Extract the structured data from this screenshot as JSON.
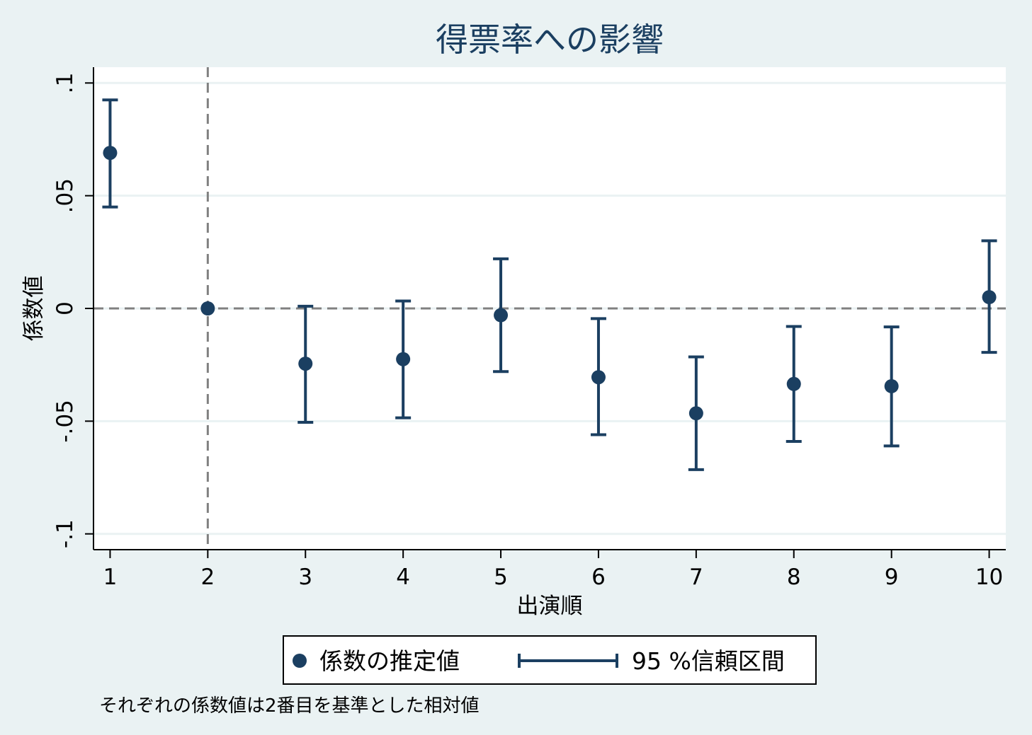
{
  "chart_data": {
    "type": "scatter",
    "title": "得票率への影響",
    "xlabel": "出演順",
    "ylabel": "係数値",
    "x": [
      1,
      2,
      3,
      4,
      5,
      6,
      7,
      8,
      9,
      10
    ],
    "series": [
      {
        "name": "係数の推定値",
        "values": [
          0.069,
          0.0,
          -0.0245,
          -0.0225,
          -0.003,
          -0.0305,
          -0.0465,
          -0.0335,
          -0.0345,
          0.005
        ]
      },
      {
        "name": "95 %信頼区間",
        "lower": [
          0.045,
          0.0,
          -0.0505,
          -0.0485,
          -0.028,
          -0.056,
          -0.0715,
          -0.059,
          -0.061,
          -0.0195
        ],
        "upper": [
          0.0925,
          0.0,
          0.001,
          0.0033,
          0.022,
          -0.0045,
          -0.0215,
          -0.008,
          -0.0082,
          0.03
        ]
      }
    ],
    "xlim": [
      0.83,
      10.17
    ],
    "ylim": [
      -0.107,
      0.107
    ],
    "yticks": [
      ".1",
      ".05",
      "0",
      "-.05",
      "-.1"
    ],
    "ytick_values": [
      0.1,
      0.05,
      0,
      -0.05,
      -0.1
    ],
    "xticks": [
      "1",
      "2",
      "3",
      "4",
      "5",
      "6",
      "7",
      "8",
      "9",
      "10"
    ],
    "xtick_values": [
      1,
      2,
      3,
      4,
      5,
      6,
      7,
      8,
      9,
      10
    ],
    "reference_lines": {
      "x": 2,
      "y": 0
    },
    "grid": true,
    "legend": "bottom",
    "note": "それぞれの係数値は2番目を基準とした相対値"
  },
  "colors": {
    "marker": "#1b3f61",
    "reference_line": "#808080",
    "grid": "#eaf2f3",
    "background": "#eaf2f3",
    "plot_area": "#ffffff"
  }
}
